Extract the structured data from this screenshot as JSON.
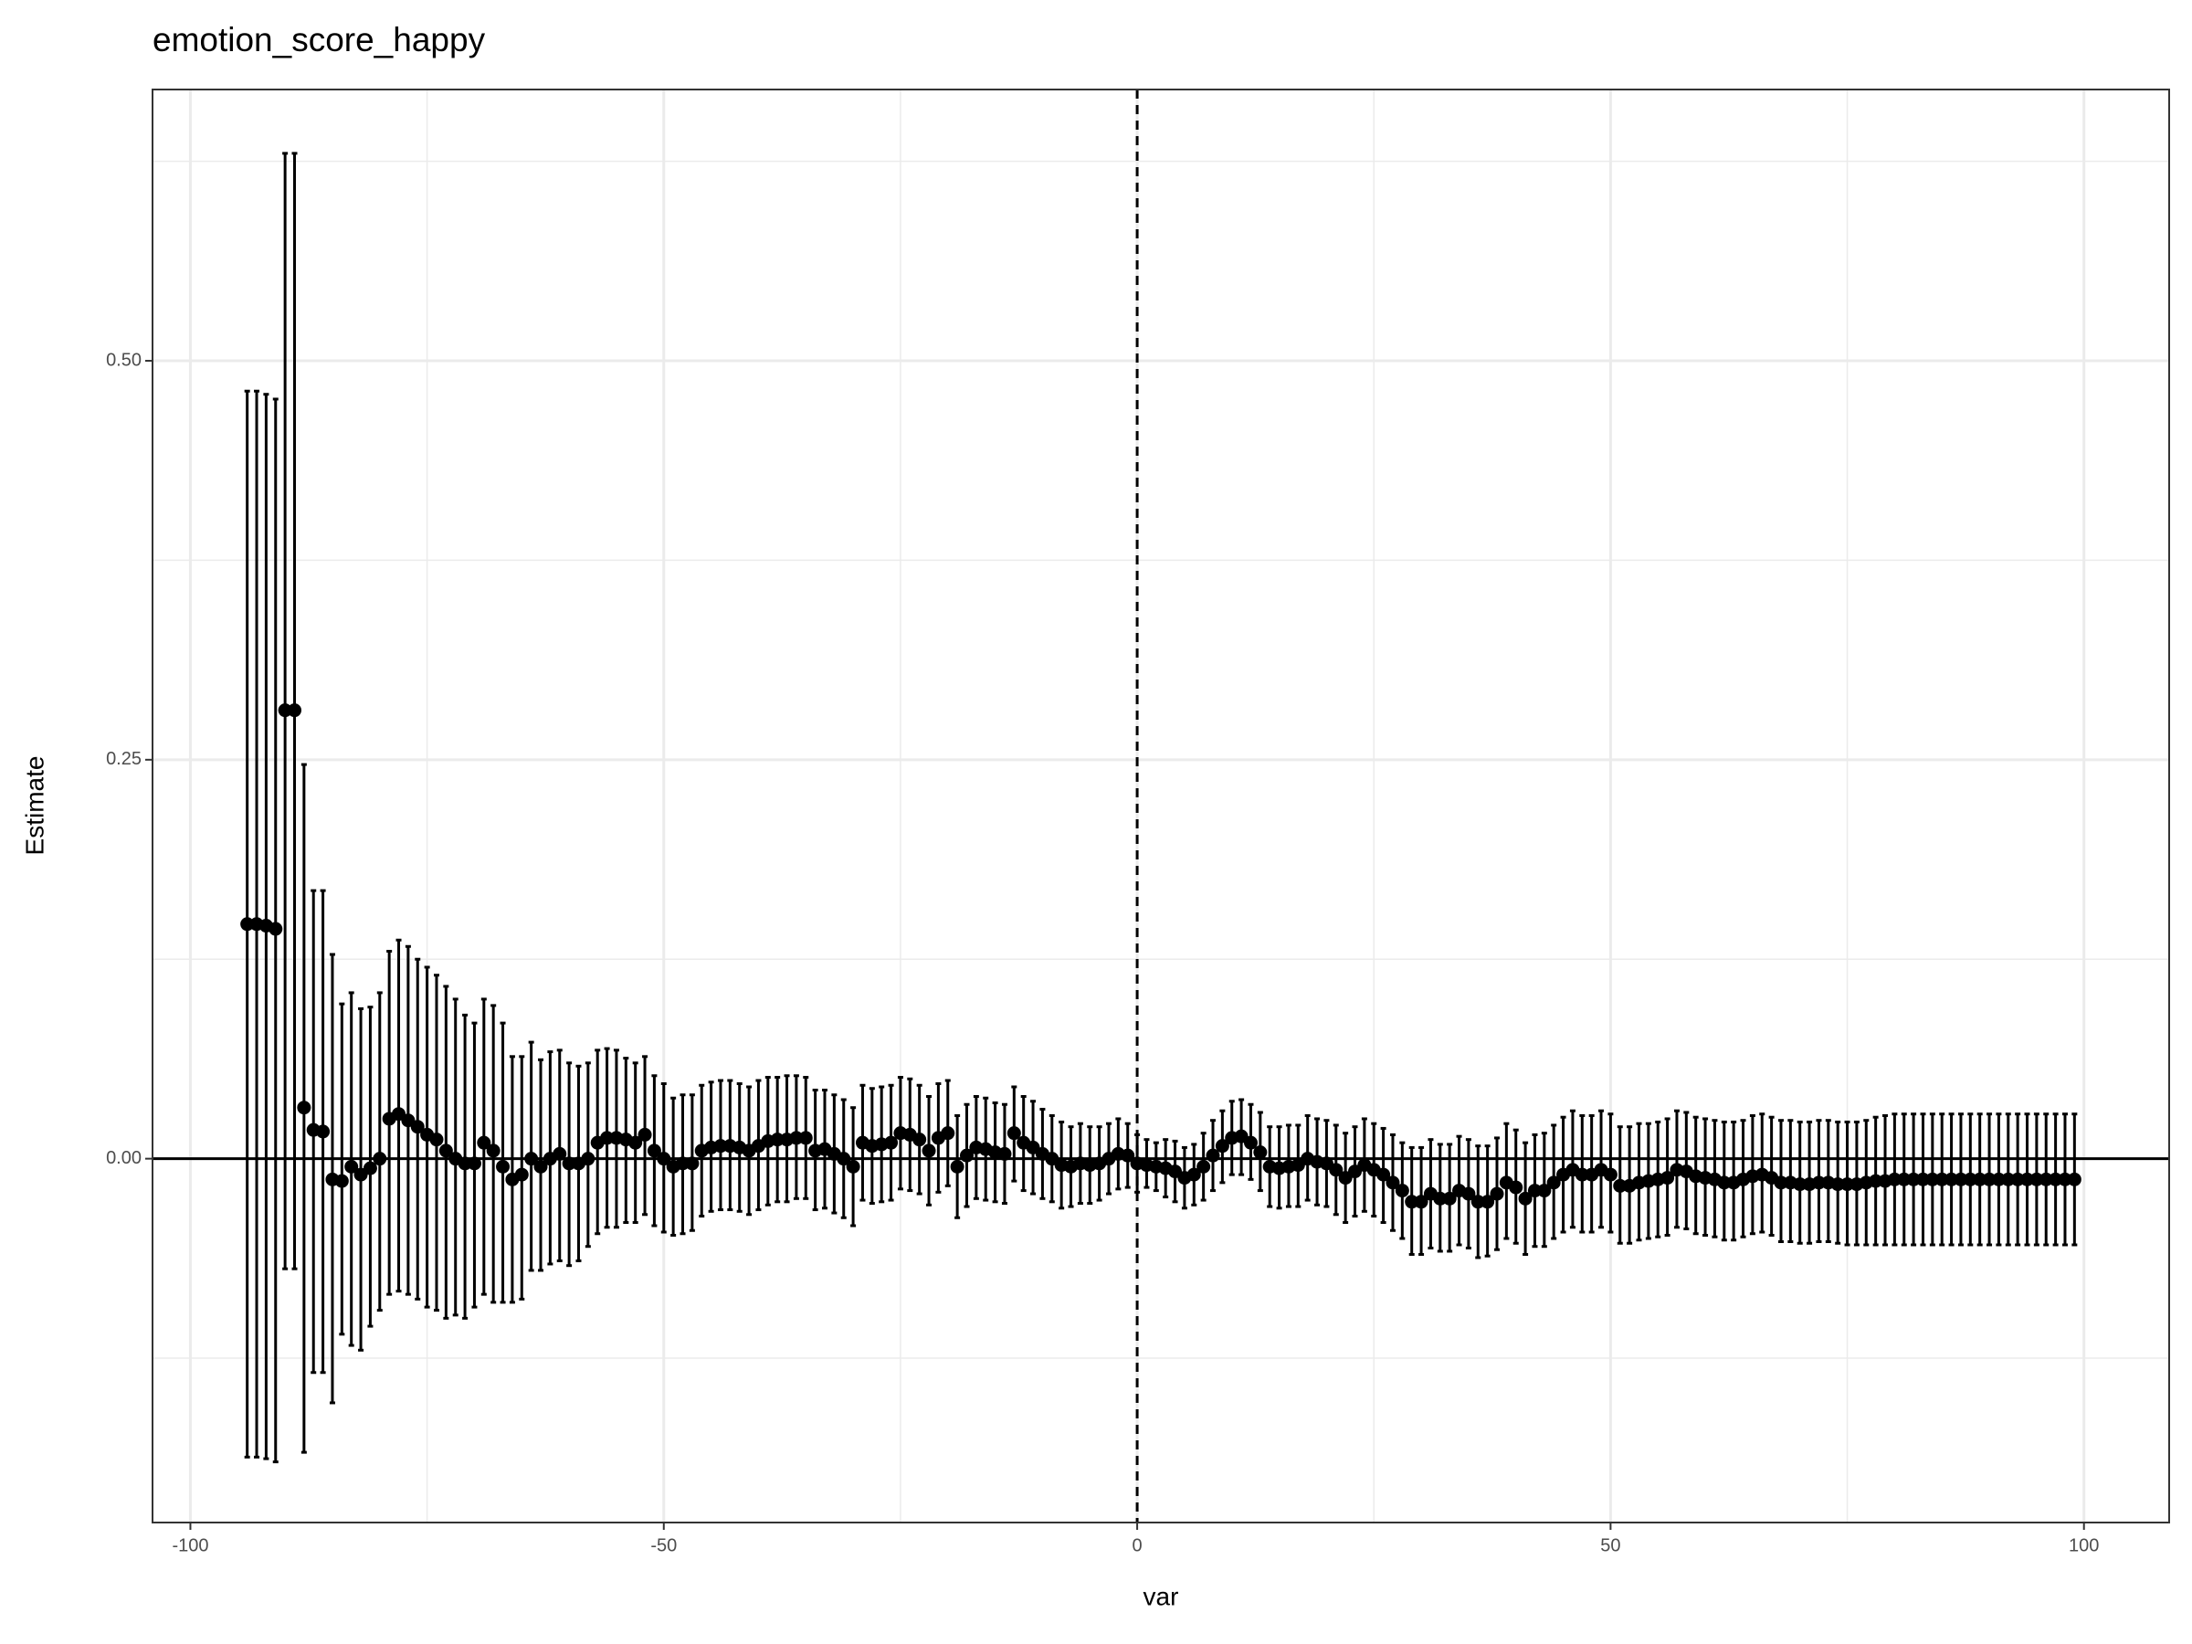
{
  "chart_data": {
    "type": "errorbar",
    "title": "emotion_score_happy",
    "x_label": "var",
    "y_label": "Estimate",
    "xlim": [
      -104,
      109
    ],
    "ylim": [
      -0.228,
      0.67
    ],
    "xticks": [
      -100,
      -50,
      0,
      50,
      100
    ],
    "yticks": [
      {
        "value": 0,
        "label": "0.00"
      },
      {
        "value": 0.25,
        "label": "0.25"
      },
      {
        "value": 0.5,
        "label": "0.50"
      }
    ],
    "x_minor": [
      -75,
      -25,
      25,
      75
    ],
    "y_minor": [
      -0.125,
      0.125,
      0.375,
      0.625
    ],
    "grid": true,
    "hline": 0,
    "vline": 0,
    "color": "#000000",
    "x": [
      -94,
      -93,
      -92,
      -91,
      -90,
      -89,
      -88,
      -87,
      -86,
      -85,
      -84,
      -83,
      -82,
      -81,
      -80,
      -79,
      -78,
      -77,
      -76,
      -75,
      -74,
      -73,
      -72,
      -71,
      -70,
      -69,
      -68,
      -67,
      -66,
      -65,
      -64,
      -63,
      -62,
      -61,
      -60,
      -59,
      -58,
      -57,
      -56,
      -55,
      -54,
      -53,
      -52,
      -51,
      -50,
      -49,
      -48,
      -47,
      -46,
      -45,
      -44,
      -43,
      -42,
      -41,
      -40,
      -39,
      -38,
      -37,
      -36,
      -35,
      -34,
      -33,
      -32,
      -31,
      -30,
      -29,
      -28,
      -27,
      -26,
      -25,
      -24,
      -23,
      -22,
      -21,
      -20,
      -19,
      -18,
      -17,
      -16,
      -15,
      -14,
      -13,
      -12,
      -11,
      -10,
      -9,
      -8,
      -7,
      -6,
      -5,
      -4,
      -3,
      -2,
      -1,
      0,
      1,
      2,
      3,
      4,
      5,
      6,
      7,
      8,
      9,
      10,
      11,
      12,
      13,
      14,
      15,
      16,
      17,
      18,
      19,
      20,
      21,
      22,
      23,
      24,
      25,
      26,
      27,
      28,
      29,
      30,
      31,
      32,
      33,
      34,
      35,
      36,
      37,
      38,
      39,
      40,
      41,
      42,
      43,
      44,
      45,
      46,
      47,
      48,
      49,
      50,
      51,
      52,
      53,
      54,
      55,
      56,
      57,
      58,
      59,
      60,
      61,
      62,
      63,
      64,
      65,
      66,
      67,
      68,
      69,
      70,
      71,
      72,
      73,
      74,
      75,
      76,
      77,
      78,
      79,
      80,
      81,
      82,
      83,
      84,
      85,
      86,
      87,
      88,
      89,
      90,
      91,
      92,
      93,
      94,
      95,
      96,
      97,
      98,
      99
    ],
    "values": [
      0.147,
      0.147,
      0.146,
      0.144,
      0.281,
      0.281,
      0.032,
      0.018,
      0.017,
      -0.013,
      -0.014,
      -0.005,
      -0.01,
      -0.006,
      0,
      0.025,
      0.028,
      0.024,
      0.02,
      0.015,
      0.012,
      0.005,
      0,
      -0.003,
      -0.003,
      0.01,
      0.005,
      -0.005,
      -0.013,
      -0.01,
      0,
      -0.005,
      0,
      0.003,
      -0.003,
      -0.003,
      0,
      0.01,
      0.013,
      0.013,
      0.012,
      0.01,
      0.015,
      0.005,
      0,
      -0.005,
      -0.003,
      -0.003,
      0.005,
      0.007,
      0.008,
      0.008,
      0.007,
      0.005,
      0.008,
      0.011,
      0.012,
      0.012,
      0.013,
      0.013,
      0.005,
      0.006,
      0.003,
      0,
      -0.005,
      0.01,
      0.008,
      0.009,
      0.01,
      0.016,
      0.015,
      0.012,
      0.005,
      0.013,
      0.016,
      -0.005,
      0.002,
      0.007,
      0.006,
      0.004,
      0.003,
      0.016,
      0.01,
      0.007,
      0.003,
      0,
      -0.004,
      -0.005,
      -0.003,
      -0.004,
      -0.003,
      0,
      0.003,
      0.002,
      -0.003,
      -0.004,
      -0.005,
      -0.006,
      -0.008,
      -0.012,
      -0.01,
      -0.005,
      0.002,
      0.008,
      0.013,
      0.014,
      0.01,
      0.004,
      -0.005,
      -0.006,
      -0.005,
      -0.004,
      0,
      -0.002,
      -0.003,
      -0.007,
      -0.012,
      -0.008,
      -0.004,
      -0.007,
      -0.01,
      -0.015,
      -0.02,
      -0.027,
      -0.027,
      -0.022,
      -0.025,
      -0.025,
      -0.02,
      -0.022,
      -0.027,
      -0.027,
      -0.022,
      -0.015,
      -0.018,
      -0.025,
      -0.02,
      -0.02,
      -0.015,
      -0.01,
      -0.007,
      -0.01,
      -0.01,
      -0.007,
      -0.01,
      -0.017,
      -0.017,
      -0.015,
      -0.014,
      -0.013,
      -0.012,
      -0.007,
      -0.008,
      -0.011,
      -0.012,
      -0.013,
      -0.015,
      -0.015,
      -0.013,
      -0.011,
      -0.01,
      -0.012,
      -0.015,
      -0.015,
      -0.016,
      -0.016,
      -0.015,
      -0.015,
      -0.016,
      -0.016,
      -0.016,
      -0.015,
      -0.014,
      -0.014,
      -0.013,
      -0.013,
      -0.013,
      -0.013,
      -0.013,
      -0.013,
      -0.013,
      -0.013,
      -0.013,
      -0.013,
      -0.013,
      -0.013,
      -0.013,
      -0.013,
      -0.013,
      -0.013,
      -0.013,
      -0.013,
      -0.013,
      -0.013
    ],
    "lower": [
      -0.187,
      -0.187,
      -0.188,
      -0.19,
      -0.069,
      -0.069,
      -0.184,
      -0.134,
      -0.134,
      -0.153,
      -0.11,
      -0.117,
      -0.12,
      -0.105,
      -0.095,
      -0.085,
      -0.083,
      -0.085,
      -0.088,
      -0.093,
      -0.095,
      -0.1,
      -0.098,
      -0.1,
      -0.093,
      -0.085,
      -0.09,
      -0.09,
      -0.09,
      -0.088,
      -0.07,
      -0.07,
      -0.066,
      -0.064,
      -0.067,
      -0.064,
      -0.055,
      -0.047,
      -0.043,
      -0.043,
      -0.04,
      -0.04,
      -0.035,
      -0.042,
      -0.046,
      -0.048,
      -0.047,
      -0.045,
      -0.036,
      -0.033,
      -0.032,
      -0.032,
      -0.033,
      -0.035,
      -0.032,
      -0.029,
      -0.027,
      -0.027,
      -0.025,
      -0.025,
      -0.032,
      -0.031,
      -0.034,
      -0.037,
      -0.042,
      -0.026,
      -0.028,
      -0.027,
      -0.026,
      -0.019,
      -0.02,
      -0.022,
      -0.029,
      -0.021,
      -0.017,
      -0.037,
      -0.03,
      -0.025,
      -0.026,
      -0.027,
      -0.028,
      -0.014,
      -0.02,
      -0.022,
      -0.025,
      -0.027,
      -0.031,
      -0.03,
      -0.028,
      -0.028,
      -0.026,
      -0.022,
      -0.019,
      -0.018,
      -0.021,
      -0.018,
      -0.02,
      -0.024,
      -0.027,
      -0.031,
      -0.029,
      -0.026,
      -0.02,
      -0.015,
      -0.01,
      -0.01,
      -0.013,
      -0.02,
      -0.03,
      -0.031,
      -0.03,
      -0.03,
      -0.026,
      -0.029,
      -0.03,
      -0.035,
      -0.04,
      -0.036,
      -0.033,
      -0.036,
      -0.04,
      -0.045,
      -0.05,
      -0.06,
      -0.06,
      -0.056,
      -0.058,
      -0.058,
      -0.054,
      -0.056,
      -0.062,
      -0.061,
      -0.057,
      -0.05,
      -0.053,
      -0.06,
      -0.055,
      -0.055,
      -0.05,
      -0.046,
      -0.043,
      -0.046,
      -0.046,
      -0.043,
      -0.046,
      -0.053,
      -0.053,
      -0.051,
      -0.05,
      -0.049,
      -0.048,
      -0.043,
      -0.044,
      -0.047,
      -0.048,
      -0.049,
      -0.051,
      -0.051,
      -0.049,
      -0.047,
      -0.046,
      -0.048,
      -0.052,
      -0.052,
      -0.053,
      -0.053,
      -0.052,
      -0.052,
      -0.053,
      -0.054,
      -0.054,
      -0.054,
      -0.054,
      -0.054,
      -0.054,
      -0.054,
      -0.054,
      -0.054,
      -0.054,
      -0.054,
      -0.054,
      -0.054,
      -0.054,
      -0.054,
      -0.054,
      -0.054,
      -0.054,
      -0.054,
      -0.054,
      -0.054,
      -0.054,
      -0.054,
      -0.054,
      -0.054
    ],
    "upper": [
      0.481,
      0.481,
      0.479,
      0.476,
      0.63,
      0.63,
      0.247,
      0.168,
      0.168,
      0.128,
      0.097,
      0.104,
      0.094,
      0.095,
      0.104,
      0.13,
      0.137,
      0.133,
      0.125,
      0.12,
      0.115,
      0.108,
      0.1,
      0.09,
      0.085,
      0.1,
      0.096,
      0.085,
      0.064,
      0.064,
      0.073,
      0.062,
      0.067,
      0.068,
      0.06,
      0.058,
      0.06,
      0.068,
      0.069,
      0.068,
      0.063,
      0.06,
      0.064,
      0.052,
      0.047,
      0.038,
      0.04,
      0.04,
      0.046,
      0.048,
      0.049,
      0.049,
      0.047,
      0.045,
      0.049,
      0.051,
      0.051,
      0.052,
      0.052,
      0.051,
      0.043,
      0.043,
      0.04,
      0.037,
      0.032,
      0.046,
      0.044,
      0.045,
      0.046,
      0.051,
      0.05,
      0.046,
      0.039,
      0.047,
      0.049,
      0.027,
      0.034,
      0.039,
      0.038,
      0.035,
      0.034,
      0.045,
      0.039,
      0.036,
      0.031,
      0.027,
      0.023,
      0.02,
      0.022,
      0.02,
      0.02,
      0.022,
      0.025,
      0.022,
      0.015,
      0.012,
      0.01,
      0.012,
      0.011,
      0.007,
      0.009,
      0.016,
      0.024,
      0.03,
      0.036,
      0.037,
      0.034,
      0.029,
      0.02,
      0.02,
      0.021,
      0.021,
      0.027,
      0.025,
      0.024,
      0.021,
      0.016,
      0.02,
      0.025,
      0.022,
      0.019,
      0.015,
      0.01,
      0.007,
      0.007,
      0.012,
      0.009,
      0.009,
      0.014,
      0.012,
      0.008,
      0.008,
      0.013,
      0.022,
      0.018,
      0.01,
      0.015,
      0.016,
      0.021,
      0.026,
      0.03,
      0.027,
      0.027,
      0.03,
      0.028,
      0.02,
      0.02,
      0.022,
      0.022,
      0.023,
      0.025,
      0.03,
      0.029,
      0.026,
      0.025,
      0.024,
      0.023,
      0.023,
      0.024,
      0.027,
      0.028,
      0.026,
      0.024,
      0.024,
      0.023,
      0.023,
      0.024,
      0.024,
      0.023,
      0.023,
      0.023,
      0.024,
      0.026,
      0.027,
      0.028,
      0.028,
      0.028,
      0.028,
      0.028,
      0.028,
      0.028,
      0.028,
      0.028,
      0.028,
      0.028,
      0.028,
      0.028,
      0.028,
      0.028,
      0.028,
      0.028,
      0.028,
      0.028,
      0.028
    ]
  }
}
